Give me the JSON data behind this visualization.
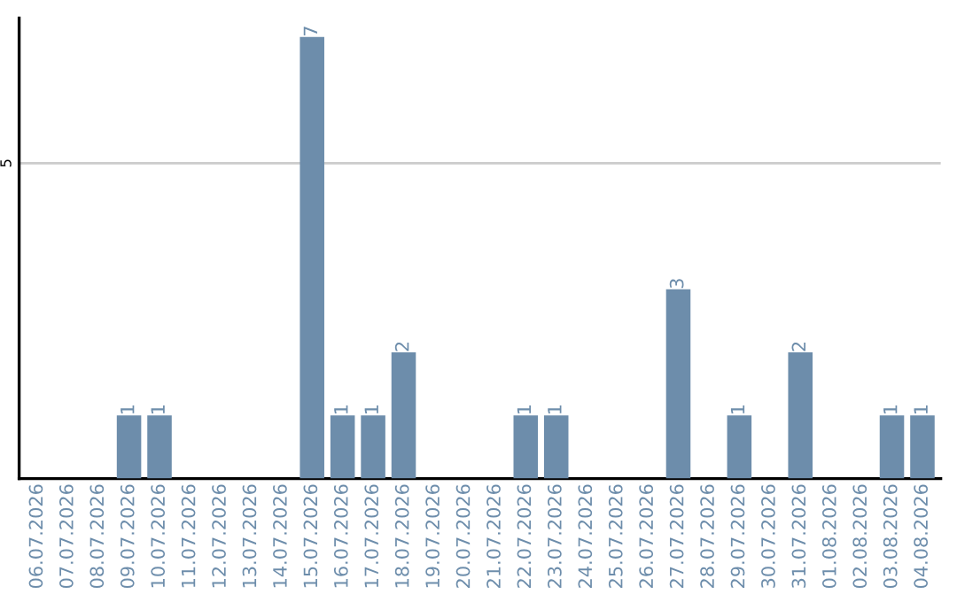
{
  "chart_data": {
    "type": "bar",
    "categories": [
      "06.07.2026",
      "07.07.2026",
      "08.07.2026",
      "09.07.2026",
      "10.07.2026",
      "11.07.2026",
      "12.07.2026",
      "13.07.2026",
      "14.07.2026",
      "15.07.2026",
      "16.07.2026",
      "17.07.2026",
      "18.07.2026",
      "19.07.2026",
      "20.07.2026",
      "21.07.2026",
      "22.07.2026",
      "23.07.2026",
      "24.07.2026",
      "25.07.2026",
      "26.07.2026",
      "27.07.2026",
      "28.07.2026",
      "29.07.2026",
      "30.07.2026",
      "31.07.2026",
      "01.08.2026",
      "02.08.2026",
      "03.08.2026",
      "04.08.2026"
    ],
    "values": [
      0,
      0,
      0,
      1,
      1,
      0,
      0,
      0,
      0,
      7,
      1,
      1,
      2,
      0,
      0,
      0,
      1,
      1,
      0,
      0,
      0,
      3,
      0,
      1,
      0,
      2,
      0,
      0,
      1,
      1
    ],
    "value_labels": [
      null,
      null,
      null,
      "1",
      "1",
      null,
      null,
      null,
      null,
      "7",
      "1",
      "1",
      "2",
      null,
      null,
      null,
      "1",
      "1",
      null,
      null,
      null,
      "3",
      null,
      "1",
      null,
      "2",
      null,
      null,
      "1",
      "1"
    ],
    "color": "#6d8dab",
    "ylim": [
      0,
      7.3
    ],
    "yticks": [
      5
    ],
    "grid": "y",
    "legend": false
  }
}
